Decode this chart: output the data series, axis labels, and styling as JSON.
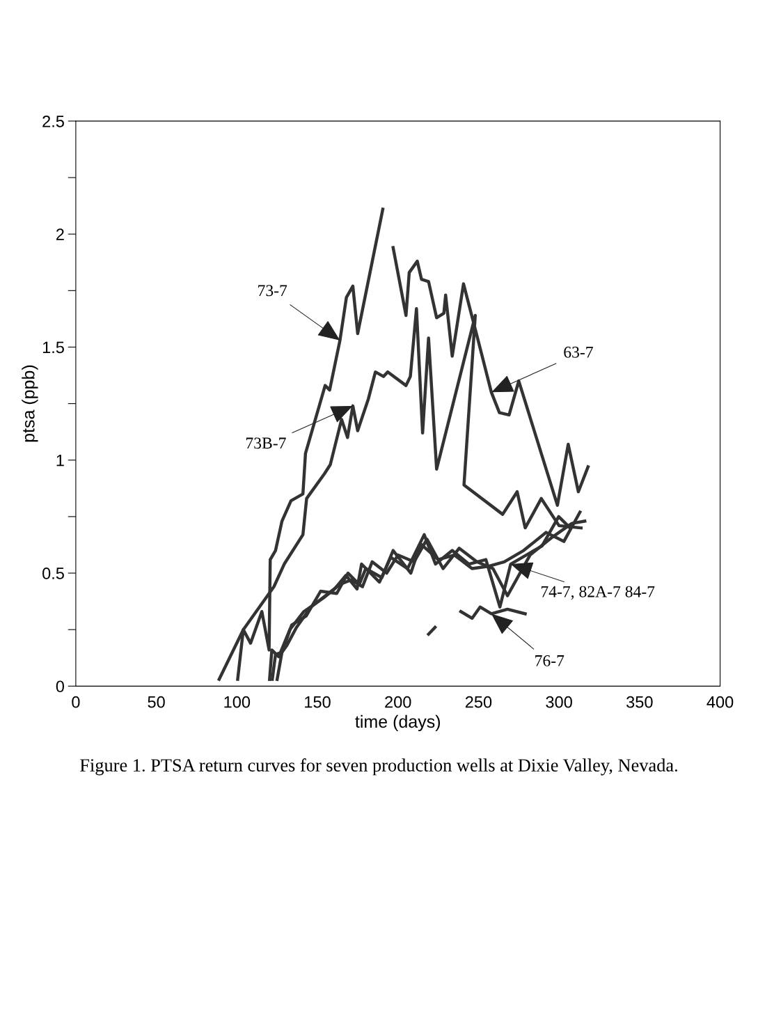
{
  "chart_data": {
    "type": "line",
    "xlabel": "time (days)",
    "ylabel": "ptsa (ppb)",
    "xlim": [
      0,
      400
    ],
    "xticks": [
      0,
      50,
      100,
      150,
      200,
      250,
      300,
      350,
      400
    ],
    "ylim": [
      0,
      2.5
    ],
    "yticks": [
      0,
      {
        "value": 0.25,
        "label": null
      },
      0.5,
      {
        "value": 0.75,
        "label": null
      },
      1,
      {
        "value": 1.25,
        "label": null
      },
      1.5,
      {
        "value": 1.75,
        "label": null
      },
      2,
      {
        "value": 2.25,
        "label": null
      },
      2.5
    ],
    "grid": false,
    "legend": false,
    "marker": "none",
    "line_style": "solid",
    "series": [
      {
        "color": "#333333",
        "x": [
          89,
          104,
          108.5,
          115.5,
          120,
          120.7,
          124,
          128,
          133.6,
          141,
          142.6,
          154.8,
          157.6,
          164,
          168,
          172,
          175,
          190.6
        ],
        "values": [
          0.03,
          0.25,
          0.19,
          0.33,
          0.16,
          0.56,
          0.6,
          0.73,
          0.82,
          0.85,
          1.03,
          1.33,
          1.31,
          1.53,
          1.72,
          1.77,
          1.56,
          2.11
        ]
      },
      {
        "color": "#333333",
        "x": [
          100.5,
          104,
          123,
          129.4,
          141,
          143.3,
          154.4,
          158,
          165,
          168.7,
          172,
          175,
          181.6,
          186,
          191,
          193.7,
          205,
          207.7,
          211.5,
          215.3,
          219,
          224,
          248,
          241,
          265,
          274,
          279,
          289,
          300,
          313.7
        ],
        "values": [
          0.03,
          0.25,
          0.44,
          0.54,
          0.67,
          0.83,
          0.94,
          0.98,
          1.18,
          1.1,
          1.24,
          1.13,
          1.27,
          1.39,
          1.37,
          1.39,
          1.33,
          1.37,
          1.67,
          1.12,
          1.54,
          0.96,
          1.64,
          0.89,
          0.76,
          0.86,
          0.7,
          0.83,
          0.71,
          0.7
        ]
      },
      {
        "color": "#333333",
        "x": [
          197,
          205,
          207,
          212,
          214.6,
          219,
          224,
          228.5,
          229.6,
          233.7,
          240.7,
          248.7,
          258,
          263,
          269,
          275,
          299,
          305.7,
          312,
          318
        ],
        "values": [
          1.94,
          1.64,
          1.83,
          1.88,
          1.8,
          1.79,
          1.63,
          1.65,
          1.73,
          1.46,
          1.78,
          1.56,
          1.3,
          1.21,
          1.2,
          1.35,
          0.8,
          1.07,
          0.86,
          0.97
        ]
      },
      {
        "color": "#333333",
        "x": [
          120.3,
          121.7,
          126,
          132.9,
          141.6,
          153.7,
          160.7,
          167.7,
          174.6,
          177.4,
          188.5,
          195.5,
          206,
          216.3,
          223.3,
          233.7,
          244,
          254.6,
          263.3,
          270,
          289.4,
          299.8,
          306.8
        ],
        "values": [
          0.03,
          0.16,
          0.13,
          0.25,
          0.33,
          0.39,
          0.43,
          0.49,
          0.43,
          0.54,
          0.46,
          0.57,
          0.52,
          0.67,
          0.54,
          0.6,
          0.54,
          0.56,
          0.35,
          0.54,
          0.62,
          0.75,
          0.7
        ]
      },
      {
        "color": "#333333",
        "x": [
          122,
          124,
          128,
          134,
          143,
          152,
          162,
          169,
          176,
          180,
          190,
          197,
          208,
          214,
          225,
          235,
          246,
          256,
          266,
          278,
          292,
          303,
          313
        ],
        "values": [
          0.03,
          0.14,
          0.15,
          0.27,
          0.31,
          0.42,
          0.41,
          0.5,
          0.45,
          0.52,
          0.48,
          0.6,
          0.5,
          0.63,
          0.56,
          0.58,
          0.52,
          0.53,
          0.55,
          0.6,
          0.68,
          0.64,
          0.77
        ]
      },
      {
        "color": "#333333",
        "x": [
          125,
          128,
          131,
          137,
          146,
          155,
          164,
          171,
          178,
          184,
          193,
          200,
          210,
          218,
          228,
          238,
          249,
          259,
          268,
          282,
          296,
          308,
          316
        ],
        "values": [
          0.03,
          0.15,
          0.18,
          0.26,
          0.35,
          0.4,
          0.45,
          0.47,
          0.44,
          0.55,
          0.5,
          0.58,
          0.55,
          0.65,
          0.52,
          0.61,
          0.55,
          0.52,
          0.4,
          0.58,
          0.66,
          0.72,
          0.73
        ]
      },
      {
        "color": "#333333",
        "x": [
          219,
          223,
          229.2,
          239,
          246,
          251,
          258,
          268,
          279
        ],
        "values": [
          0.23,
          0.26,
          null,
          0.33,
          0.3,
          0.35,
          0.32,
          0.34,
          0.32
        ]
      }
    ],
    "annotations": [
      {
        "text": "73-7",
        "x": 164,
        "y": 1.53
      },
      {
        "text": "73B-7",
        "x": 172,
        "y": 1.24
      },
      {
        "text": "63-7",
        "x": 258,
        "y": 1.3
      },
      {
        "text": "74-7, 82A-7 84-7",
        "x": 270,
        "y": 0.54
      },
      {
        "text": "76-7",
        "x": 258,
        "y": 0.32
      },
      "Figure 1. PTSA return curves for seven production wells at Dixie Valley, Nevada."
    ]
  }
}
